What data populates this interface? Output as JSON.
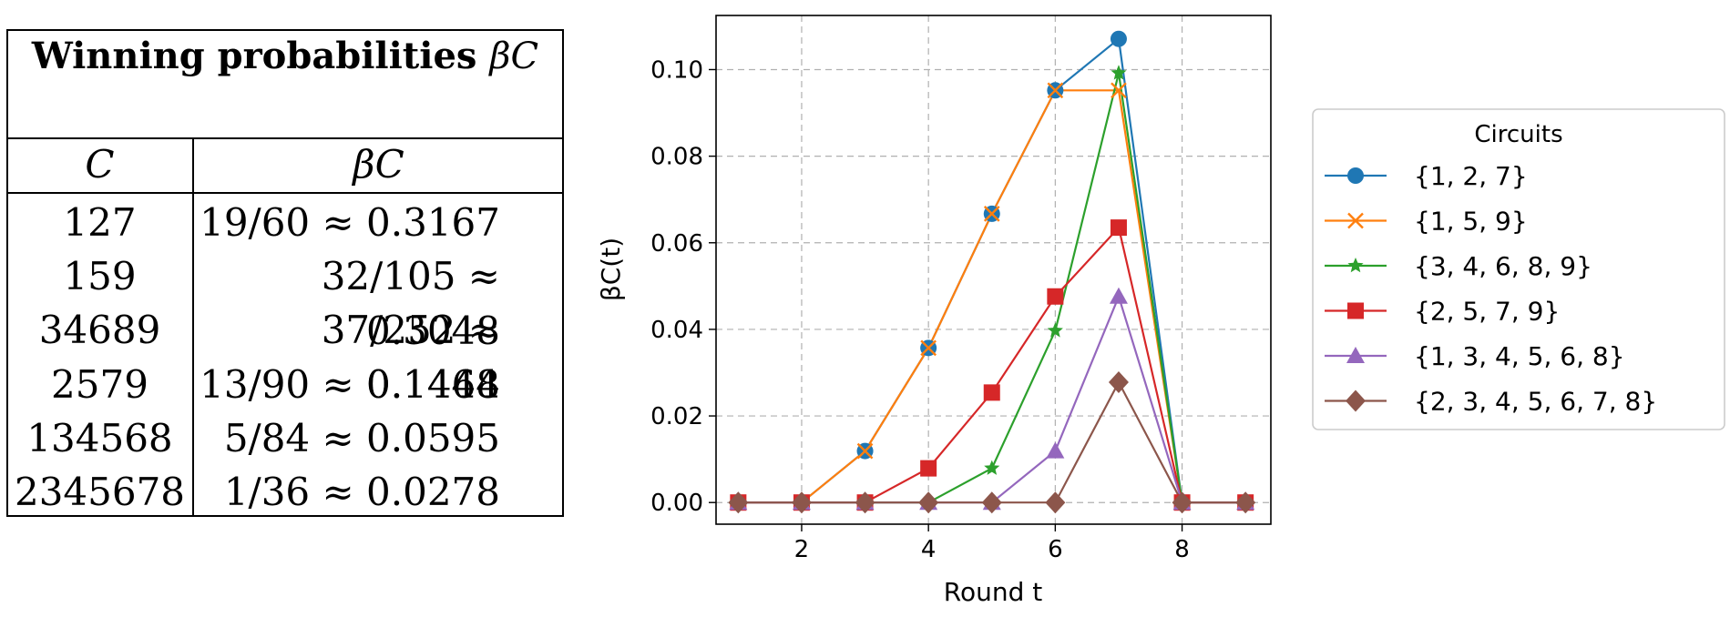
{
  "table": {
    "title": "Winning probabilities",
    "title_symbol": "βC",
    "header_c": "C",
    "header_beta": "βC",
    "rows": [
      {
        "c": "127",
        "beta": "19/60 ≈ 0.3167"
      },
      {
        "c": "159",
        "beta": "32/105 ≈ 0.3048"
      },
      {
        "c": "34689",
        "beta": "37/252 ≈ 0.1468"
      },
      {
        "c": "2579",
        "beta": "13/90 ≈ 0.1444"
      },
      {
        "c": "134568",
        "beta": "5/84 ≈ 0.0595"
      },
      {
        "c": "2345678",
        "beta": "1/36 ≈ 0.0278"
      }
    ]
  },
  "chart_data": {
    "type": "line",
    "title": "",
    "xlabel": "Round t",
    "ylabel": "βC(t)",
    "x": [
      1,
      2,
      3,
      4,
      5,
      6,
      7,
      8,
      9
    ],
    "xlim": [
      0.65,
      9.4
    ],
    "ylim": [
      -0.005,
      0.1125
    ],
    "xticks": [
      2,
      4,
      6,
      8
    ],
    "yticks": [
      0.0,
      0.02,
      0.04,
      0.06,
      0.08,
      0.1
    ],
    "ytick_labels": [
      "0.00",
      "0.02",
      "0.04",
      "0.06",
      "0.08",
      "0.10"
    ],
    "grid": true,
    "legend": {
      "title": "Circuits",
      "placement": "right"
    },
    "series": [
      {
        "name": "{1, 2, 7}",
        "color": "#1f77b4",
        "marker": "circle",
        "values": [
          0,
          0,
          0.0119,
          0.0357,
          0.0667,
          0.0952,
          0.1071,
          0,
          0
        ]
      },
      {
        "name": "{1, 5, 9}",
        "color": "#ff7f0e",
        "marker": "x",
        "values": [
          0,
          0,
          0.0119,
          0.0357,
          0.0667,
          0.0952,
          0.0952,
          0,
          0
        ]
      },
      {
        "name": "{3, 4, 6, 8, 9}",
        "color": "#2ca02c",
        "marker": "star",
        "values": [
          0,
          0,
          0,
          0,
          0.0079,
          0.0397,
          0.0992,
          0,
          0
        ]
      },
      {
        "name": "{2, 5, 7, 9}",
        "color": "#d62728",
        "marker": "square",
        "values": [
          0,
          0,
          0,
          0.0079,
          0.0254,
          0.0476,
          0.0635,
          0,
          0
        ]
      },
      {
        "name": "{1, 3, 4, 5, 6, 8}",
        "color": "#9467bd",
        "marker": "triangle",
        "values": [
          0,
          0,
          0,
          0,
          0,
          0.0119,
          0.0476,
          0,
          0
        ]
      },
      {
        "name": "{2, 3, 4, 5, 6, 7, 8}",
        "color": "#8c564b",
        "marker": "diamond",
        "values": [
          0,
          0,
          0,
          0,
          0,
          0,
          0.0278,
          0,
          0
        ]
      }
    ]
  }
}
